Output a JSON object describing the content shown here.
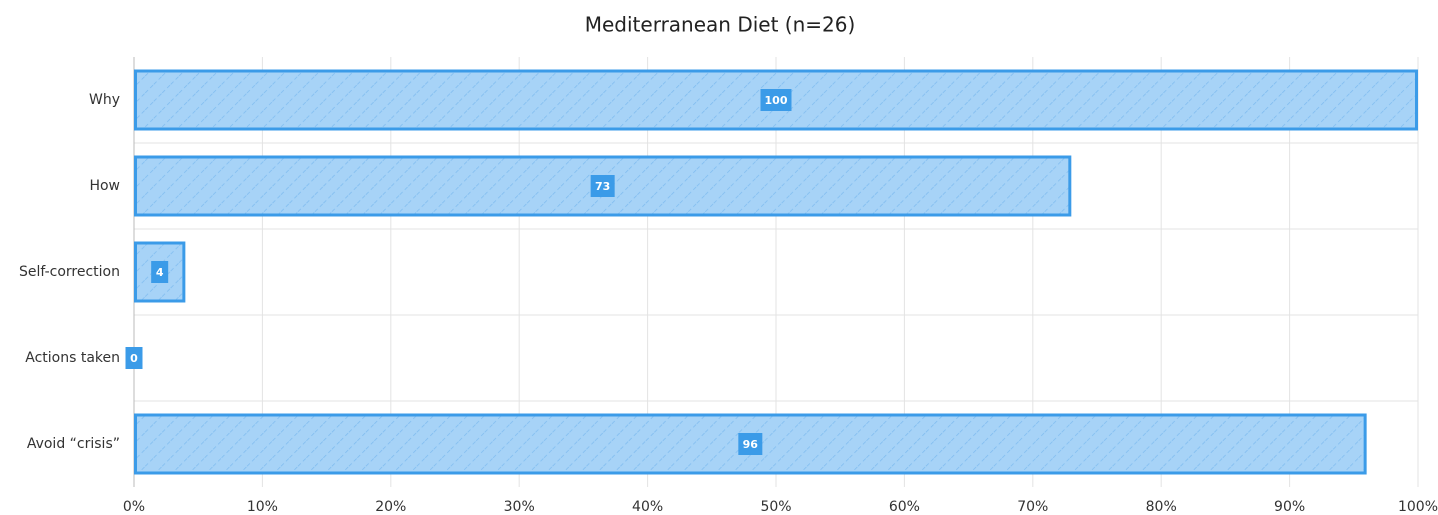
{
  "chart_data": {
    "type": "hbar",
    "title": "Mediterranean Diet (n=26)",
    "categories": [
      "Why",
      "How",
      "Self-correction",
      "Actions taken",
      "Avoid “crisis”"
    ],
    "values": [
      100,
      73,
      4,
      0,
      96
    ],
    "color": "#3b9be8",
    "xlim": [
      0,
      100
    ],
    "xticks": [
      {
        "value": 0,
        "label": "0%"
      },
      {
        "value": 10,
        "label": "10%"
      },
      {
        "value": 20,
        "label": "20%"
      },
      {
        "value": 30,
        "label": "30%"
      },
      {
        "value": 40,
        "label": "40%"
      },
      {
        "value": 50,
        "label": "50%"
      },
      {
        "value": 60,
        "label": "60%"
      },
      {
        "value": 70,
        "label": "70%"
      },
      {
        "value": 80,
        "label": "80%"
      },
      {
        "value": 90,
        "label": "90%"
      },
      {
        "value": 100,
        "label": "100%"
      }
    ],
    "grid": true
  }
}
